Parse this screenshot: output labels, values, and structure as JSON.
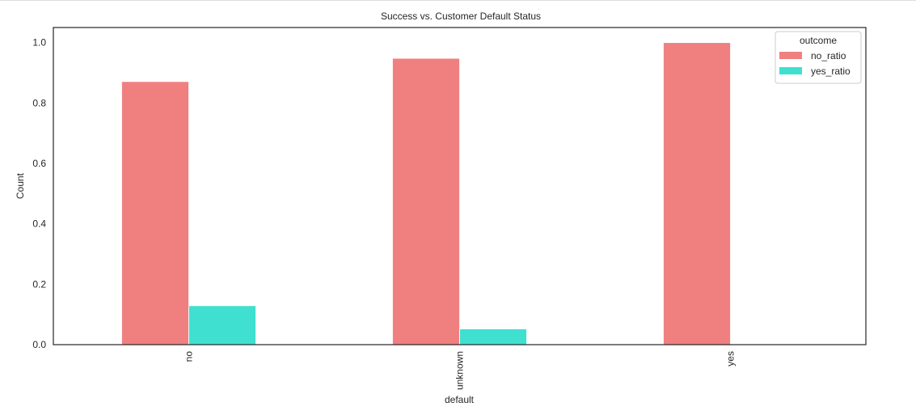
{
  "chart_data": {
    "type": "bar",
    "title": "Success vs. Customer Default Status",
    "xlabel": "default",
    "ylabel": "Count",
    "categories": [
      "no",
      "unknown",
      "yes"
    ],
    "series": [
      {
        "name": "no_ratio",
        "values": [
          0.871,
          0.948,
          1.0
        ],
        "color": "#f08080"
      },
      {
        "name": "yes_ratio",
        "values": [
          0.129,
          0.052,
          0.0
        ],
        "color": "#40e0d0"
      }
    ],
    "ylim": [
      0,
      1.05
    ],
    "yticks": [
      "0.0",
      "0.2",
      "0.4",
      "0.6",
      "0.8",
      "1.0"
    ],
    "legend": {
      "title": "outcome",
      "placement": "top-right"
    },
    "grid": false
  }
}
